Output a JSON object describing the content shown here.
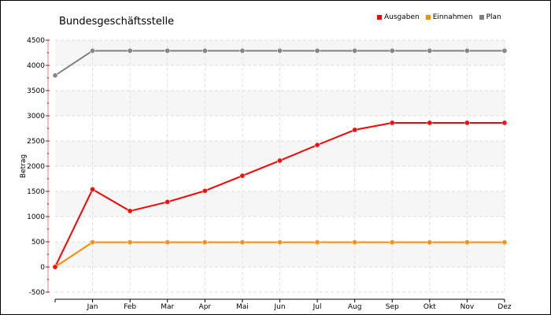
{
  "chart_data": {
    "type": "line",
    "title": "Bundesgeschäftsstelle",
    "xlabel": "",
    "ylabel": "Betrag",
    "categories": [
      "",
      "Jan",
      "Feb",
      "Mar",
      "Apr",
      "Mai",
      "Jun",
      "Jul",
      "Aug",
      "Sep",
      "Okt",
      "Nov",
      "Dez"
    ],
    "ylim": [
      -500,
      4500
    ],
    "yticks": [
      -500,
      0,
      500,
      1000,
      1500,
      2000,
      2500,
      3000,
      3500,
      4000,
      4500
    ],
    "grid": true,
    "legend_position": "top-right",
    "series": [
      {
        "name": "Ausgaben",
        "color": "#ff0000",
        "values": [
          0,
          1540,
          1110,
          1290,
          1510,
          1810,
          2110,
          2420,
          2720,
          2860,
          2860,
          2860,
          2860
        ]
      },
      {
        "name": "Einnahmen",
        "color": "#ff8c00",
        "values": [
          0,
          490,
          490,
          490,
          490,
          490,
          490,
          490,
          490,
          490,
          490,
          490,
          490
        ]
      },
      {
        "name": "Plan",
        "color": "#808080",
        "values": [
          3800,
          4290,
          4290,
          4290,
          4290,
          4290,
          4290,
          4290,
          4290,
          4290,
          4290,
          4290,
          4290
        ]
      }
    ]
  }
}
